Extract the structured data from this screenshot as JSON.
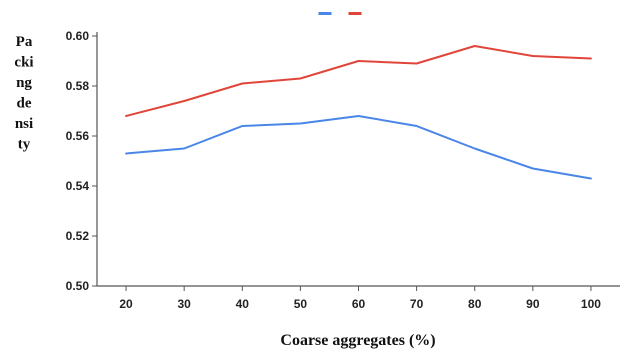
{
  "chart_data": {
    "type": "line",
    "title": "",
    "xlabel": "Coarse aggregates (%)",
    "ylabel_lines": [
      "Pa",
      "cki",
      "ng",
      "de",
      "nsi",
      "ty"
    ],
    "x": [
      20,
      30,
      40,
      50,
      60,
      70,
      80,
      90,
      100
    ],
    "xlim": [
      15,
      105
    ],
    "ylim": [
      0.5,
      0.6
    ],
    "yticks": [
      "0.50",
      "0.52",
      "0.54",
      "0.56",
      "0.58",
      "0.60"
    ],
    "grid": false,
    "legend_position": "top-center",
    "series": [
      {
        "color": "#4a86e8",
        "values": [
          0.553,
          0.555,
          0.564,
          0.565,
          0.568,
          0.564,
          0.555,
          0.547,
          0.543
        ]
      },
      {
        "color": "#e0453a",
        "values": [
          0.568,
          0.574,
          0.581,
          0.583,
          0.59,
          0.589,
          0.596,
          0.592,
          0.591
        ]
      }
    ]
  }
}
